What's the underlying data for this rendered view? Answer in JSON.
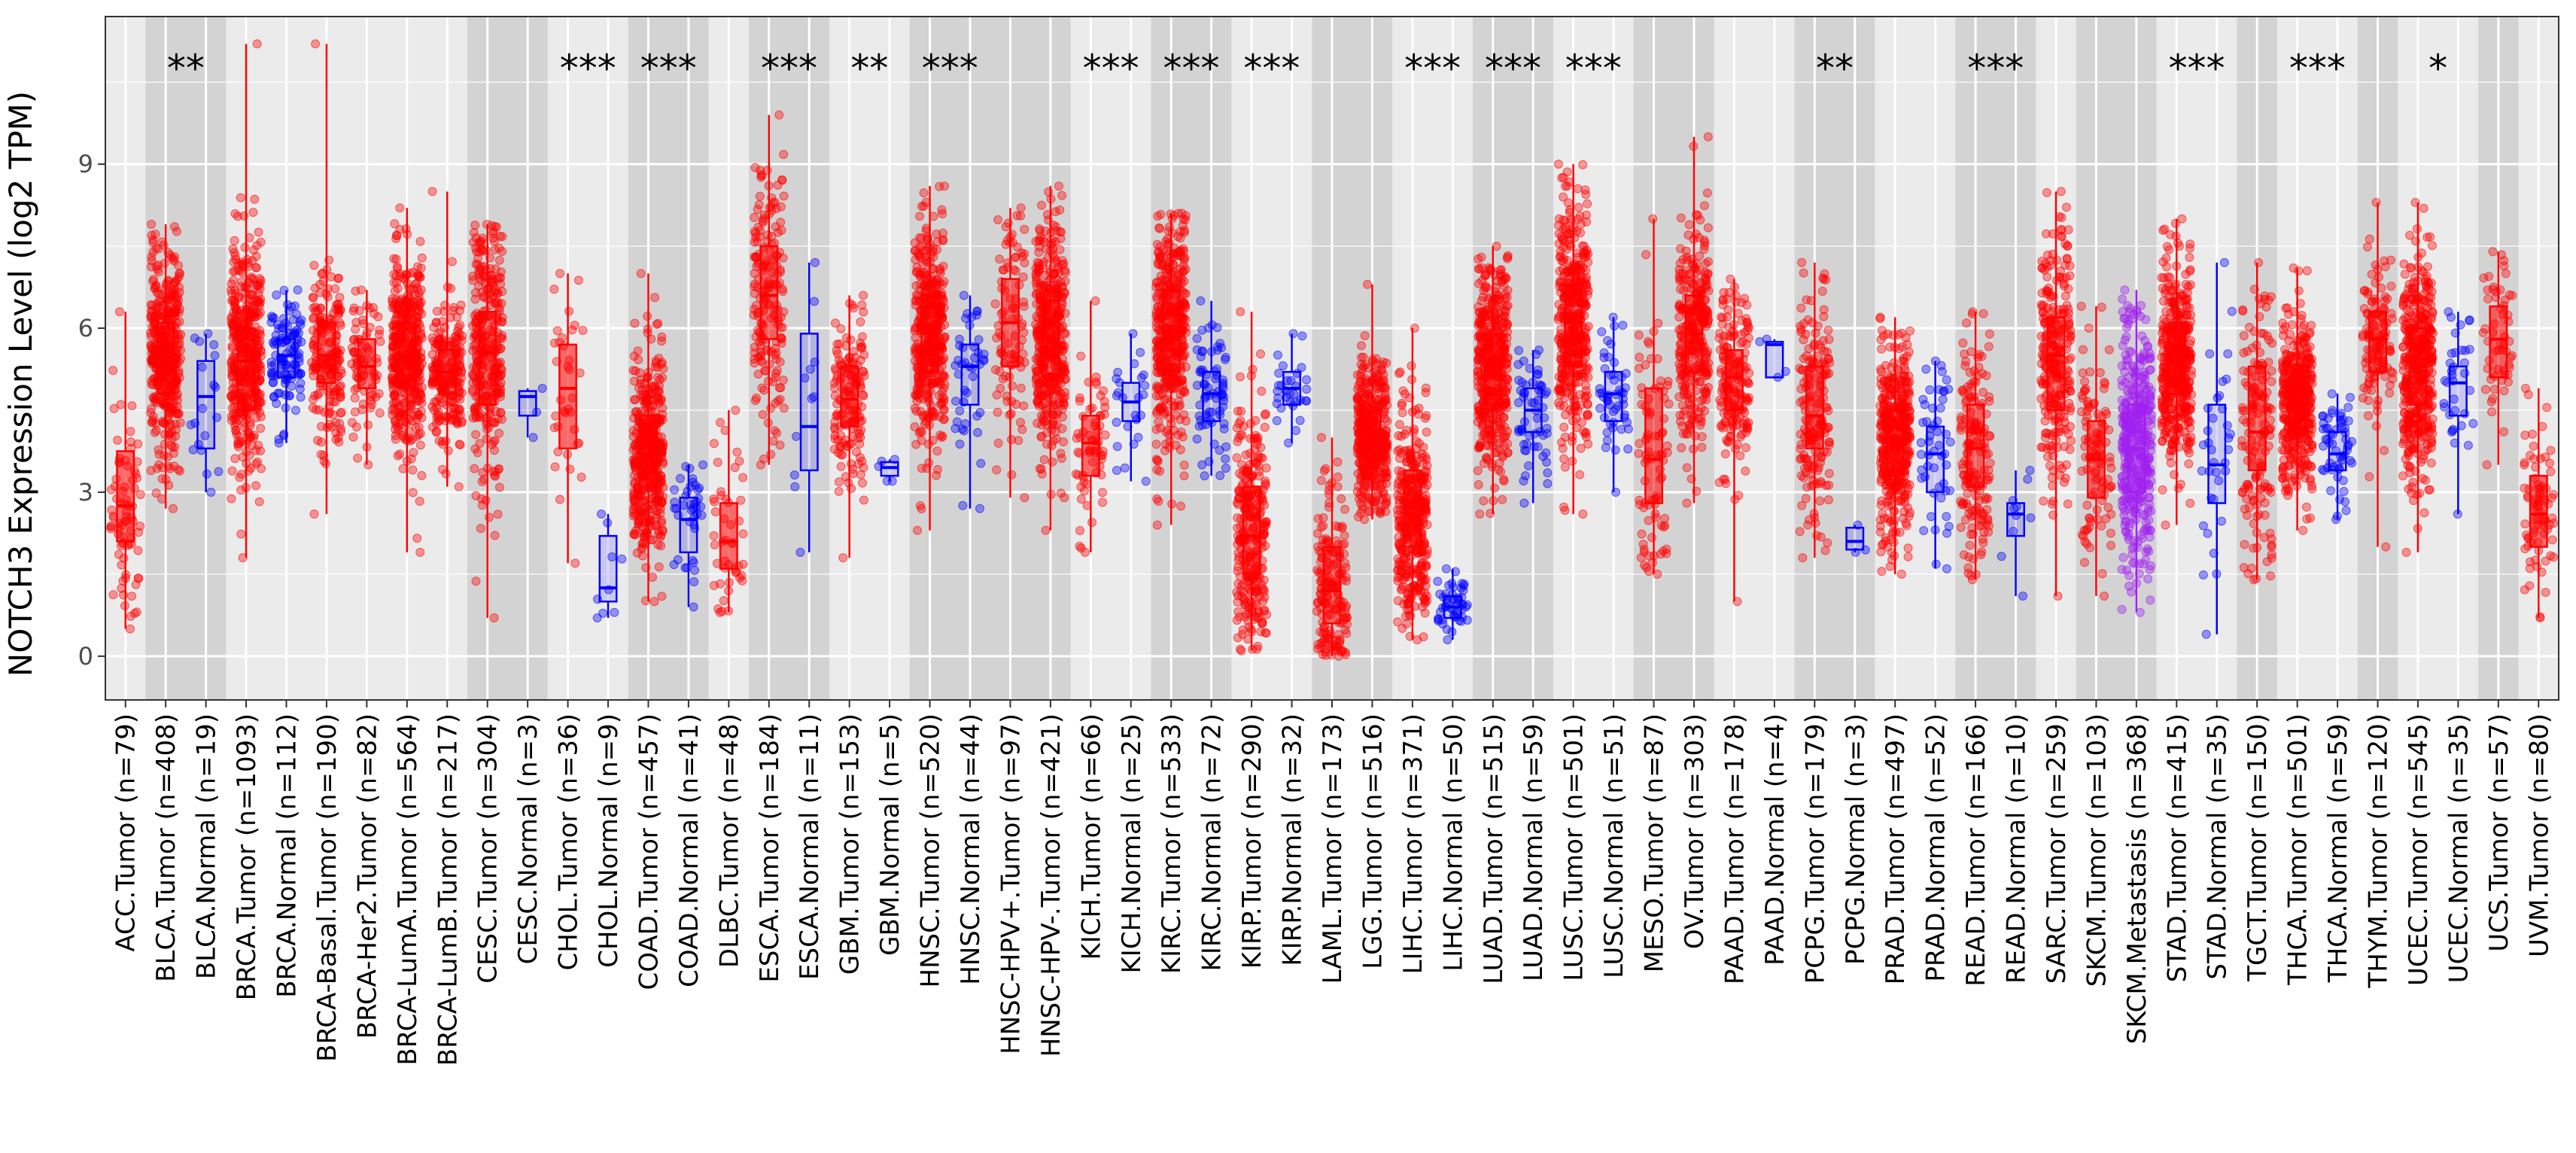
{
  "chart_data": {
    "type": "boxplot",
    "title": "",
    "xlabel": "",
    "ylabel": "NOTCH3 Expression Level (log2 TPM)",
    "ylim": [
      -0.8,
      11.7
    ],
    "yticks": [
      0,
      3,
      6,
      9
    ],
    "grid": true,
    "colors": {
      "tumor": "#ff0000",
      "normal": "#0000ff",
      "metastasis": "#a020f0",
      "shade": "#d3d3d3",
      "panel": "#ebebeb"
    },
    "shaded_groups": [
      1,
      3,
      5,
      7,
      9,
      11,
      13,
      15,
      17,
      19,
      21,
      23,
      25,
      27,
      29,
      31
    ],
    "categories": [
      {
        "label": "ACC.Tumor (n=79)",
        "kind": "tumor",
        "group": 0,
        "q1": 2.1,
        "median": 2.75,
        "q3": 3.75,
        "lo": 0.5,
        "hi": 6.3,
        "sig": ""
      },
      {
        "label": "BLCA.Tumor (n=408)",
        "kind": "tumor",
        "group": 1,
        "q1": 4.8,
        "median": 5.45,
        "q3": 6.1,
        "lo": 2.7,
        "hi": 7.9,
        "sig": "**"
      },
      {
        "label": "BLCA.Normal (n=19)",
        "kind": "normal",
        "group": 1,
        "q1": 3.8,
        "median": 4.75,
        "q3": 5.4,
        "lo": 3.0,
        "hi": 5.9,
        "sig": ""
      },
      {
        "label": "BRCA.Tumor (n=1093)",
        "kind": "tumor",
        "group": 2,
        "q1": 4.5,
        "median": 5.4,
        "q3": 6.0,
        "lo": 1.8,
        "hi": 11.2,
        "sig": ""
      },
      {
        "label": "BRCA.Normal (n=112)",
        "kind": "normal",
        "group": 2,
        "q1": 5.1,
        "median": 5.5,
        "q3": 5.8,
        "lo": 3.9,
        "hi": 6.7,
        "sig": ""
      },
      {
        "label": "BRCA-Basal.Tumor (n=190)",
        "kind": "tumor",
        "group": 2,
        "q1": 5.0,
        "median": 5.5,
        "q3": 6.1,
        "lo": 2.6,
        "hi": 11.2,
        "sig": ""
      },
      {
        "label": "BRCA-Her2.Tumor (n=82)",
        "kind": "tumor",
        "group": 2,
        "q1": 4.9,
        "median": 5.3,
        "q3": 5.8,
        "lo": 3.5,
        "hi": 6.7,
        "sig": ""
      },
      {
        "label": "BRCA-LumA.Tumor (n=564)",
        "kind": "tumor",
        "group": 2,
        "q1": 4.9,
        "median": 5.5,
        "q3": 6.1,
        "lo": 1.9,
        "hi": 8.2,
        "sig": ""
      },
      {
        "label": "BRCA-LumB.Tumor (n=217)",
        "kind": "tumor",
        "group": 2,
        "q1": 4.8,
        "median": 5.2,
        "q3": 5.6,
        "lo": 3.1,
        "hi": 8.5,
        "sig": ""
      },
      {
        "label": "CESC.Tumor (n=304)",
        "kind": "tumor",
        "group": 3,
        "q1": 4.6,
        "median": 5.55,
        "q3": 6.3,
        "lo": 0.7,
        "hi": 7.9,
        "sig": ""
      },
      {
        "label": "CESC.Normal (n=3)",
        "kind": "normal",
        "group": 3,
        "q1": 4.4,
        "median": 4.75,
        "q3": 4.85,
        "lo": 4.0,
        "hi": 4.9,
        "sig": ""
      },
      {
        "label": "CHOL.Tumor (n=36)",
        "kind": "tumor",
        "group": 4,
        "q1": 3.8,
        "median": 4.9,
        "q3": 5.7,
        "lo": 1.7,
        "hi": 7.0,
        "sig": "***"
      },
      {
        "label": "CHOL.Normal (n=9)",
        "kind": "normal",
        "group": 4,
        "q1": 1.0,
        "median": 1.25,
        "q3": 2.2,
        "lo": 0.7,
        "hi": 2.6,
        "sig": ""
      },
      {
        "label": "COAD.Tumor (n=457)",
        "kind": "tumor",
        "group": 5,
        "q1": 3.1,
        "median": 3.7,
        "q3": 4.4,
        "lo": 1.0,
        "hi": 7.0,
        "sig": "***"
      },
      {
        "label": "COAD.Normal (n=41)",
        "kind": "normal",
        "group": 5,
        "q1": 1.9,
        "median": 2.5,
        "q3": 2.9,
        "lo": 0.9,
        "hi": 3.5,
        "sig": ""
      },
      {
        "label": "DLBC.Tumor (n=48)",
        "kind": "tumor",
        "group": 6,
        "q1": 1.6,
        "median": 2.1,
        "q3": 2.8,
        "lo": 0.8,
        "hi": 4.5,
        "sig": ""
      },
      {
        "label": "ESCA.Tumor (n=184)",
        "kind": "tumor",
        "group": 7,
        "q1": 5.8,
        "median": 6.6,
        "q3": 7.5,
        "lo": 3.5,
        "hi": 9.9,
        "sig": "***"
      },
      {
        "label": "ESCA.Normal (n=11)",
        "kind": "normal",
        "group": 7,
        "q1": 3.4,
        "median": 4.2,
        "q3": 5.9,
        "lo": 1.9,
        "hi": 7.2,
        "sig": ""
      },
      {
        "label": "GBM.Tumor (n=153)",
        "kind": "tumor",
        "group": 8,
        "q1": 4.2,
        "median": 4.7,
        "q3": 5.3,
        "lo": 1.8,
        "hi": 6.6,
        "sig": "**"
      },
      {
        "label": "GBM.Normal (n=5)",
        "kind": "normal",
        "group": 8,
        "q1": 3.3,
        "median": 3.45,
        "q3": 3.55,
        "lo": 3.2,
        "hi": 3.6,
        "sig": ""
      },
      {
        "label": "HNSC.Tumor (n=520)",
        "kind": "tumor",
        "group": 9,
        "q1": 5.2,
        "median": 5.9,
        "q3": 6.6,
        "lo": 2.3,
        "hi": 8.6,
        "sig": "***"
      },
      {
        "label": "HNSC.Normal (n=44)",
        "kind": "normal",
        "group": 9,
        "q1": 4.6,
        "median": 5.3,
        "q3": 5.7,
        "lo": 2.7,
        "hi": 6.6,
        "sig": ""
      },
      {
        "label": "HNSC-HPV+.Tumor (n=97)",
        "kind": "tumor",
        "group": 9,
        "q1": 5.3,
        "median": 6.1,
        "q3": 6.9,
        "lo": 2.9,
        "hi": 8.2,
        "sig": ""
      },
      {
        "label": "HNSC-HPV-.Tumor (n=421)",
        "kind": "tumor",
        "group": 9,
        "q1": 5.1,
        "median": 5.8,
        "q3": 6.5,
        "lo": 2.3,
        "hi": 8.6,
        "sig": ""
      },
      {
        "label": "KICH.Tumor (n=66)",
        "kind": "tumor",
        "group": 10,
        "q1": 3.3,
        "median": 3.9,
        "q3": 4.4,
        "lo": 1.9,
        "hi": 6.5,
        "sig": "***"
      },
      {
        "label": "KICH.Normal (n=25)",
        "kind": "normal",
        "group": 10,
        "q1": 4.3,
        "median": 4.65,
        "q3": 5.0,
        "lo": 3.2,
        "hi": 5.9,
        "sig": ""
      },
      {
        "label": "KIRC.Tumor (n=533)",
        "kind": "tumor",
        "group": 11,
        "q1": 5.2,
        "median": 5.9,
        "q3": 6.7,
        "lo": 2.4,
        "hi": 8.1,
        "sig": "***"
      },
      {
        "label": "KIRC.Normal (n=72)",
        "kind": "normal",
        "group": 11,
        "q1": 4.3,
        "median": 4.8,
        "q3": 5.2,
        "lo": 3.3,
        "hi": 6.5,
        "sig": ""
      },
      {
        "label": "KIRP.Tumor (n=290)",
        "kind": "tumor",
        "group": 12,
        "q1": 1.5,
        "median": 2.2,
        "q3": 3.1,
        "lo": 0.1,
        "hi": 6.3,
        "sig": "***"
      },
      {
        "label": "KIRP.Normal (n=32)",
        "kind": "normal",
        "group": 12,
        "q1": 4.6,
        "median": 4.9,
        "q3": 5.2,
        "lo": 3.9,
        "hi": 5.9,
        "sig": ""
      },
      {
        "label": "LAML.Tumor (n=173)",
        "kind": "tumor",
        "group": 13,
        "q1": 0.6,
        "median": 1.2,
        "q3": 2.0,
        "lo": 0.0,
        "hi": 4.0,
        "sig": ""
      },
      {
        "label": "LGG.Tumor (n=516)",
        "kind": "tumor",
        "group": 13,
        "q1": 3.6,
        "median": 4.0,
        "q3": 4.5,
        "lo": 2.5,
        "hi": 6.8,
        "sig": ""
      },
      {
        "label": "LIHC.Tumor (n=371)",
        "kind": "tumor",
        "group": 14,
        "q1": 2.0,
        "median": 2.6,
        "q3": 3.4,
        "lo": 0.3,
        "hi": 6.0,
        "sig": "***"
      },
      {
        "label": "LIHC.Normal (n=50)",
        "kind": "normal",
        "group": 14,
        "q1": 0.7,
        "median": 0.9,
        "q3": 1.1,
        "lo": 0.3,
        "hi": 1.6,
        "sig": ""
      },
      {
        "label": "LUAD.Tumor (n=515)",
        "kind": "tumor",
        "group": 15,
        "q1": 4.6,
        "median": 5.3,
        "q3": 5.9,
        "lo": 2.6,
        "hi": 7.5,
        "sig": "***"
      },
      {
        "label": "LUAD.Normal (n=59)",
        "kind": "normal",
        "group": 15,
        "q1": 4.1,
        "median": 4.5,
        "q3": 4.9,
        "lo": 2.8,
        "hi": 5.6,
        "sig": ""
      },
      {
        "label": "LUSC.Tumor (n=501)",
        "kind": "tumor",
        "group": 16,
        "q1": 5.3,
        "median": 6.1,
        "q3": 6.8,
        "lo": 2.6,
        "hi": 9.0,
        "sig": "***"
      },
      {
        "label": "LUSC.Normal (n=51)",
        "kind": "normal",
        "group": 16,
        "q1": 4.3,
        "median": 4.8,
        "q3": 5.2,
        "lo": 3.0,
        "hi": 6.2,
        "sig": ""
      },
      {
        "label": "MESO.Tumor (n=87)",
        "kind": "tumor",
        "group": 17,
        "q1": 2.8,
        "median": 3.6,
        "q3": 4.9,
        "lo": 1.5,
        "hi": 8.0,
        "sig": ""
      },
      {
        "label": "OV.Tumor (n=303)",
        "kind": "tumor",
        "group": 17,
        "q1": 5.2,
        "median": 5.9,
        "q3": 6.6,
        "lo": 2.8,
        "hi": 9.5,
        "sig": ""
      },
      {
        "label": "PAAD.Tumor (n=178)",
        "kind": "tumor",
        "group": 18,
        "q1": 4.5,
        "median": 5.1,
        "q3": 5.6,
        "lo": 1.0,
        "hi": 6.9,
        "sig": ""
      },
      {
        "label": "PAAD.Normal (n=4)",
        "kind": "normal",
        "group": 18,
        "q1": 5.1,
        "median": 5.7,
        "q3": 5.75,
        "lo": 5.1,
        "hi": 5.8,
        "sig": ""
      },
      {
        "label": "PCPG.Tumor (n=179)",
        "kind": "tumor",
        "group": 19,
        "q1": 3.8,
        "median": 4.4,
        "q3": 5.3,
        "lo": 1.8,
        "hi": 7.2,
        "sig": "**"
      },
      {
        "label": "PCPG.Normal (n=3)",
        "kind": "normal",
        "group": 19,
        "q1": 1.95,
        "median": 2.1,
        "q3": 2.35,
        "lo": 1.9,
        "hi": 2.4,
        "sig": ""
      },
      {
        "label": "PRAD.Tumor (n=497)",
        "kind": "tumor",
        "group": 20,
        "q1": 3.3,
        "median": 3.9,
        "q3": 4.5,
        "lo": 1.5,
        "hi": 6.2,
        "sig": ""
      },
      {
        "label": "PRAD.Normal (n=52)",
        "kind": "normal",
        "group": 20,
        "q1": 3.0,
        "median": 3.7,
        "q3": 4.2,
        "lo": 1.6,
        "hi": 5.4,
        "sig": ""
      },
      {
        "label": "READ.Tumor (n=166)",
        "kind": "tumor",
        "group": 21,
        "q1": 3.1,
        "median": 3.8,
        "q3": 4.6,
        "lo": 1.4,
        "hi": 6.3,
        "sig": "***"
      },
      {
        "label": "READ.Normal (n=10)",
        "kind": "normal",
        "group": 21,
        "q1": 2.2,
        "median": 2.6,
        "q3": 2.8,
        "lo": 1.1,
        "hi": 3.4,
        "sig": ""
      },
      {
        "label": "SARC.Tumor (n=259)",
        "kind": "tumor",
        "group": 22,
        "q1": 4.5,
        "median": 5.5,
        "q3": 6.2,
        "lo": 1.1,
        "hi": 8.5,
        "sig": ""
      },
      {
        "label": "SKCM.Tumor (n=103)",
        "kind": "tumor",
        "group": 23,
        "q1": 2.9,
        "median": 3.6,
        "q3": 4.3,
        "lo": 1.1,
        "hi": 6.4,
        "sig": ""
      },
      {
        "label": "SKCM.Metastasis (n=368)",
        "kind": "metastasis",
        "group": 23,
        "q1": 3.0,
        "median": 3.8,
        "q3": 4.6,
        "lo": 0.8,
        "hi": 6.7,
        "sig": ""
      },
      {
        "label": "STAD.Tumor (n=415)",
        "kind": "tumor",
        "group": 24,
        "q1": 4.8,
        "median": 5.4,
        "q3": 6.1,
        "lo": 2.4,
        "hi": 8.0,
        "sig": "***"
      },
      {
        "label": "STAD.Normal (n=35)",
        "kind": "normal",
        "group": 24,
        "q1": 2.8,
        "median": 3.5,
        "q3": 4.6,
        "lo": 0.4,
        "hi": 7.2,
        "sig": ""
      },
      {
        "label": "TGCT.Tumor (n=150)",
        "kind": "tumor",
        "group": 25,
        "q1": 3.4,
        "median": 4.1,
        "q3": 5.3,
        "lo": 1.4,
        "hi": 7.2,
        "sig": ""
      },
      {
        "label": "THCA.Tumor (n=501)",
        "kind": "tumor",
        "group": 26,
        "q1": 4.1,
        "median": 4.6,
        "q3": 5.1,
        "lo": 2.3,
        "hi": 7.1,
        "sig": "***"
      },
      {
        "label": "THCA.Normal (n=59)",
        "kind": "normal",
        "group": 26,
        "q1": 3.4,
        "median": 3.7,
        "q3": 4.1,
        "lo": 2.5,
        "hi": 4.8,
        "sig": ""
      },
      {
        "label": "THYM.Tumor (n=120)",
        "kind": "tumor",
        "group": 27,
        "q1": 5.2,
        "median": 5.8,
        "q3": 6.3,
        "lo": 2.0,
        "hi": 8.3,
        "sig": ""
      },
      {
        "label": "UCEC.Tumor (n=545)",
        "kind": "tumor",
        "group": 28,
        "q1": 4.6,
        "median": 5.3,
        "q3": 6.0,
        "lo": 1.9,
        "hi": 8.3,
        "sig": "*"
      },
      {
        "label": "UCEC.Normal (n=35)",
        "kind": "normal",
        "group": 28,
        "q1": 4.4,
        "median": 5.0,
        "q3": 5.3,
        "lo": 2.6,
        "hi": 6.3,
        "sig": ""
      },
      {
        "label": "UCS.Tumor (n=57)",
        "kind": "tumor",
        "group": 29,
        "q1": 5.1,
        "median": 5.8,
        "q3": 6.4,
        "lo": 3.5,
        "hi": 7.4,
        "sig": ""
      },
      {
        "label": "UVM.Tumor (n=80)",
        "kind": "tumor",
        "group": 30,
        "q1": 2.0,
        "median": 2.6,
        "q3": 3.3,
        "lo": 0.7,
        "hi": 4.9,
        "sig": ""
      }
    ]
  }
}
